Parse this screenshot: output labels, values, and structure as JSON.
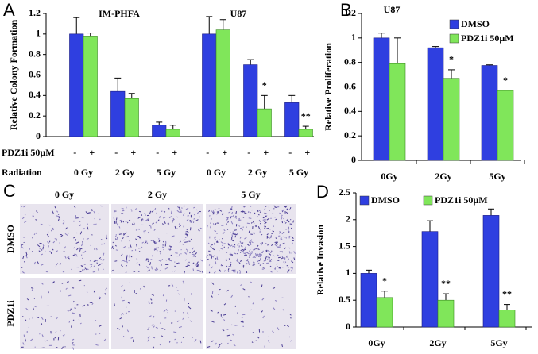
{
  "chart_data": [
    {
      "type": "bar",
      "panel": "A",
      "ylabel": "Relative Colony Formation",
      "annotations": [
        "IM-PHFA",
        "U87"
      ],
      "categories": [
        "0 Gy",
        "2 Gy",
        "5 Gy",
        "0 Gy",
        "2 Gy",
        "5 Gy"
      ],
      "treatment_label": "PDZ1i 50µM",
      "treatment_marks": [
        "-",
        "+"
      ],
      "category_label": "Radiation",
      "ylim": [
        0,
        1.2
      ],
      "yticks": [
        0,
        0.2,
        0.4,
        0.6,
        0.8,
        1,
        1.2
      ],
      "series": [
        {
          "color": "#2f3fe0",
          "values": [
            1.0,
            0.44,
            0.11,
            1.0,
            0.7,
            0.33
          ],
          "errors": [
            0.16,
            0.13,
            0.03,
            0.17,
            0.05,
            0.07
          ],
          "stars": [
            null,
            null,
            null,
            null,
            null,
            null
          ]
        },
        {
          "color": "#80e65a",
          "values": [
            0.98,
            0.37,
            0.07,
            1.04,
            0.27,
            0.07
          ],
          "errors": [
            0.03,
            0.05,
            0.04,
            0.1,
            0.13,
            0.03
          ],
          "stars": [
            null,
            null,
            null,
            null,
            "*",
            "**"
          ]
        }
      ]
    },
    {
      "type": "bar",
      "panel": "B",
      "title": "U87",
      "ylabel": "Relative Proliferation",
      "categories": [
        "0Gy",
        "2Gy",
        "5Gy"
      ],
      "ylim": [
        0,
        1.2
      ],
      "yticks": [
        0,
        0.2,
        0.4,
        0.6,
        0.8,
        1,
        1.2
      ],
      "legend": "upper right",
      "series": [
        {
          "name": "DMSO",
          "color": "#2f3fe0",
          "values": [
            1.0,
            0.92,
            0.775
          ],
          "errors": [
            0.04,
            0.01,
            0.005
          ],
          "stars": [
            null,
            null,
            null
          ]
        },
        {
          "name": "PDZ1i 50µM",
          "color": "#80e65a",
          "values": [
            0.79,
            0.67,
            0.57
          ],
          "errors": [
            0.21,
            0.07,
            0
          ],
          "stars": [
            null,
            "*",
            "*"
          ]
        }
      ]
    },
    {
      "type": "bar",
      "panel": "D",
      "ylabel": "Relative Invasion",
      "categories": [
        "0Gy",
        "2Gy",
        "5Gy"
      ],
      "ylim": [
        0,
        2.5
      ],
      "yticks": [
        0,
        0.5,
        1,
        1.5,
        2,
        2.5
      ],
      "legend": "upper center",
      "series": [
        {
          "name": "DMSO",
          "color": "#2f3fe0",
          "values": [
            1.0,
            1.78,
            2.08
          ],
          "errors": [
            0.06,
            0.2,
            0.12
          ],
          "stars": [
            null,
            null,
            null
          ]
        },
        {
          "name": "PDZ1i 50µM",
          "color": "#80e65a",
          "values": [
            0.55,
            0.5,
            0.32
          ],
          "errors": [
            0.12,
            0.12,
            0.1
          ],
          "stars": [
            "*",
            "**",
            "**"
          ]
        }
      ]
    }
  ],
  "panel_c": {
    "panel": "C",
    "columns": [
      "0 Gy",
      "2 Gy",
      "5 Gy"
    ],
    "rows": [
      "DMSO",
      "PDZ1i"
    ]
  }
}
